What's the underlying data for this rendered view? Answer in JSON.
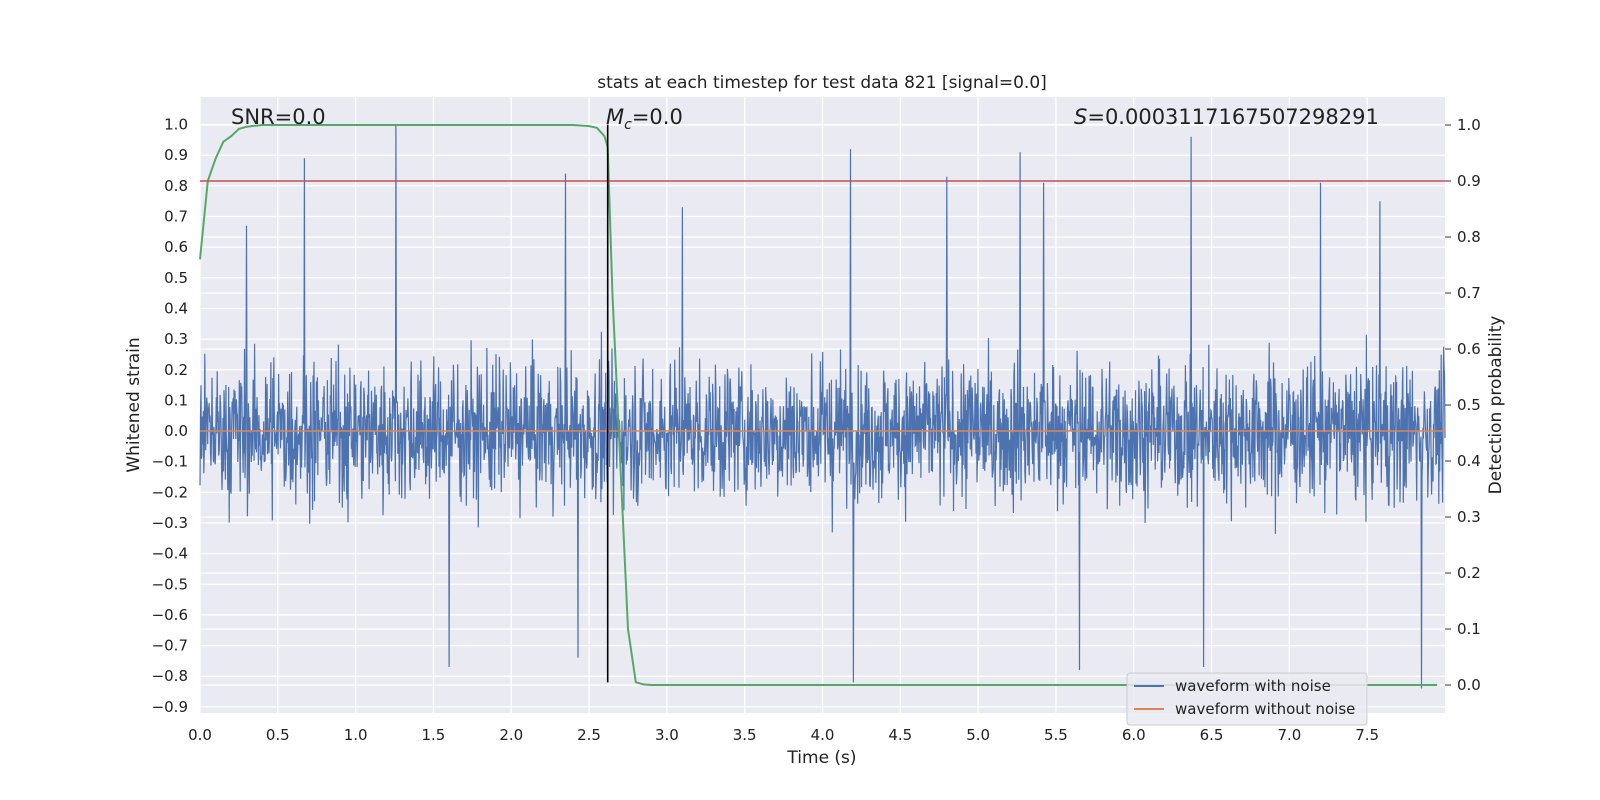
{
  "chart_data": {
    "type": "line",
    "title": "stats at each timestep for test data 821 [signal=0.0]",
    "xlabel": "Time (s)",
    "ylabel": "Whitened strain",
    "y2label": "Detection probability",
    "xlim": [
      0.0,
      8.0
    ],
    "ylim": [
      -0.92,
      1.09
    ],
    "y2lim": [
      -0.05,
      1.05
    ],
    "x_ticks": [
      "0.0",
      "0.5",
      "1.0",
      "1.5",
      "2.0",
      "2.5",
      "3.0",
      "3.5",
      "4.0",
      "4.5",
      "5.0",
      "5.5",
      "6.0",
      "6.5",
      "7.0",
      "7.5"
    ],
    "y_ticks": [
      "1.0",
      "0.9",
      "0.8",
      "0.7",
      "0.6",
      "0.5",
      "0.4",
      "0.3",
      "0.2",
      "0.1",
      "0.0",
      "−0.1",
      "−0.2",
      "−0.3",
      "−0.4",
      "−0.5",
      "−0.6",
      "−0.7",
      "−0.8",
      "−0.9"
    ],
    "y2_ticks": [
      "1.0",
      "0.9",
      "0.8",
      "0.7",
      "0.6",
      "0.5",
      "0.4",
      "0.3",
      "0.2",
      "0.1",
      "0.0"
    ],
    "annotations": {
      "snr": "SNR=0.0",
      "mc_symbol": "M",
      "mc_sub": "c",
      "mc_value": "=0.0",
      "s_symbol": "S",
      "s_value": "=0.0003117167507298291"
    },
    "legend": {
      "placement": "bottom-right",
      "entries": [
        "waveform with noise",
        "waveform without noise"
      ]
    },
    "series": [
      {
        "name": "waveform with noise",
        "axis": "left",
        "color": "#4c72b0",
        "kind": "noise",
        "spike_peaks": [
          {
            "x": 0.67,
            "y": 0.89
          },
          {
            "x": 1.26,
            "y": 1.0
          },
          {
            "x": 2.35,
            "y": 0.84
          },
          {
            "x": 4.18,
            "y": 0.92
          },
          {
            "x": 4.8,
            "y": 0.83
          },
          {
            "x": 5.27,
            "y": 0.91
          },
          {
            "x": 5.42,
            "y": 0.81
          },
          {
            "x": 6.37,
            "y": 0.96
          },
          {
            "x": 7.2,
            "y": 0.81
          },
          {
            "x": 0.3,
            "y": 0.67
          },
          {
            "x": 3.1,
            "y": 0.73
          },
          {
            "x": 7.58,
            "y": 0.75
          },
          {
            "x": 4.2,
            "y": -0.82
          },
          {
            "x": 5.65,
            "y": -0.78
          },
          {
            "x": 6.45,
            "y": -0.77
          },
          {
            "x": 7.85,
            "y": -0.84
          },
          {
            "x": 1.6,
            "y": -0.77
          },
          {
            "x": 2.43,
            "y": -0.74
          }
        ]
      },
      {
        "name": "waveform without noise",
        "axis": "left",
        "color": "#dd8452",
        "x": [
          0.0,
          8.0
        ],
        "y": [
          0.0,
          0.0
        ]
      },
      {
        "name": "detection probability",
        "axis": "right",
        "color": "#55a868",
        "x": [
          0.0,
          0.05,
          0.1,
          0.15,
          0.2,
          0.25,
          0.3,
          0.4,
          0.6,
          1.0,
          2.0,
          2.4,
          2.5,
          2.55,
          2.6,
          2.62,
          2.65,
          2.7,
          2.75,
          2.8,
          2.85,
          2.9,
          3.0,
          4.0,
          6.0,
          7.95
        ],
        "y": [
          0.76,
          0.9,
          0.94,
          0.97,
          0.98,
          0.993,
          0.997,
          1.0,
          1.0,
          1.0,
          1.0,
          1.0,
          0.998,
          0.995,
          0.98,
          0.96,
          0.7,
          0.4,
          0.1,
          0.005,
          0.001,
          0.0,
          0.0,
          0.0,
          0.0,
          0.0
        ]
      },
      {
        "name": "threshold",
        "axis": "right",
        "color": "#c44e52",
        "x": [
          0.0,
          8.0
        ],
        "y": [
          0.9,
          0.9
        ]
      },
      {
        "name": "detection time",
        "axis": "left",
        "color": "#000000",
        "x": [
          2.62,
          2.62
        ],
        "y": [
          -0.82,
          1.0
        ]
      }
    ]
  }
}
